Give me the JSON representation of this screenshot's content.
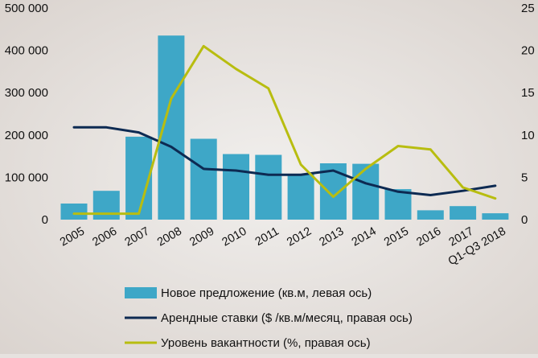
{
  "chart_data": {
    "type": "bar+line",
    "categories": [
      "2005",
      "2006",
      "2007",
      "2008",
      "2009",
      "2010",
      "2011",
      "2012",
      "2013",
      "2014",
      "2015",
      "2016",
      "2017",
      "Q1-Q3 2018"
    ],
    "left_axis": {
      "ylim": [
        0,
        500000
      ],
      "ticks": [
        "0",
        "100 000",
        "200 000",
        "300 000",
        "400 000",
        "500 000"
      ]
    },
    "right_axis": {
      "ylim": [
        0,
        25
      ],
      "ticks": [
        "0",
        "5",
        "10",
        "15",
        "20",
        "25"
      ]
    },
    "grid": false,
    "legend_placement": "bottom",
    "series": [
      {
        "name": "Новое предложение (кв.м, левая ось)",
        "type": "bar",
        "axis": "left",
        "color": "#3ea7c7",
        "values": [
          38000,
          68000,
          196000,
          435000,
          191000,
          155000,
          153000,
          107000,
          133000,
          132000,
          72000,
          22000,
          32000,
          15000
        ]
      },
      {
        "name": "Арендные ставки ($ /кв.м/месяц, правая ось)",
        "type": "line",
        "axis": "right",
        "color": "#0d2a52",
        "values": [
          10.9,
          10.9,
          10.3,
          8.6,
          6.0,
          5.8,
          5.3,
          5.3,
          5.8,
          4.3,
          3.3,
          2.9,
          3.4,
          4.0
        ]
      },
      {
        "name": "Уровень вакантности (%, правая ось)",
        "type": "line",
        "axis": "right",
        "color": "#b8bd10",
        "values": [
          0.7,
          0.7,
          0.7,
          14.3,
          20.5,
          17.8,
          15.5,
          6.5,
          2.7,
          6.0,
          8.7,
          8.3,
          3.8,
          2.5
        ]
      }
    ]
  }
}
